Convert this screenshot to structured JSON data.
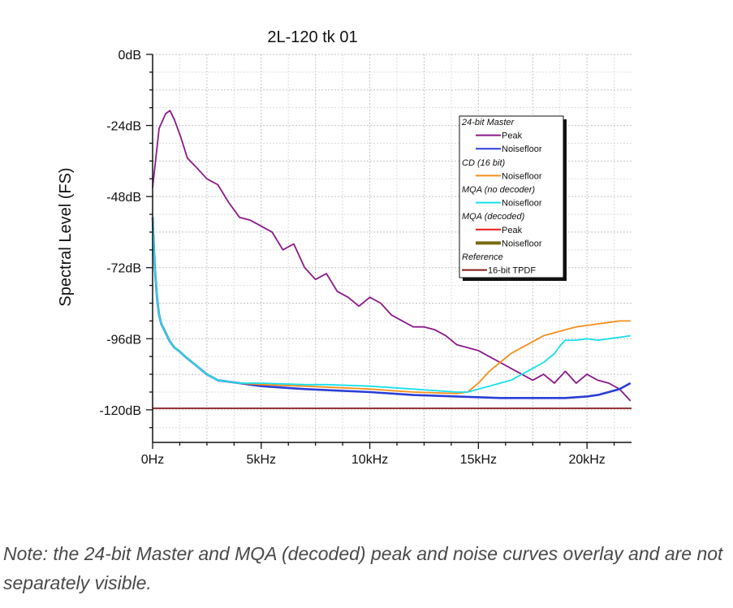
{
  "chart_data": {
    "type": "line",
    "title": "2L-120 tk 01",
    "xlabel": "",
    "ylabel": "Spectral Level (FS)",
    "xlim": [
      0,
      22050
    ],
    "ylim": [
      -131,
      0
    ],
    "x_ticks": [
      {
        "value": 0,
        "label": "0Hz"
      },
      {
        "value": 5000,
        "label": "5kHz"
      },
      {
        "value": 10000,
        "label": "10kHz"
      },
      {
        "value": 15000,
        "label": "15kHz"
      },
      {
        "value": 20000,
        "label": "20kHz"
      }
    ],
    "y_ticks": [
      {
        "value": 0,
        "label": "0dB"
      },
      {
        "value": -24,
        "label": "-24dB"
      },
      {
        "value": -48,
        "label": "-48dB"
      },
      {
        "value": -72,
        "label": "-72dB"
      },
      {
        "value": -96,
        "label": "-96dB"
      },
      {
        "value": -120,
        "label": "-120dB"
      }
    ],
    "grid": true,
    "legend_position": "right",
    "legend_groups": [
      {
        "title": "24-bit Master",
        "entries": [
          {
            "label": "Peak",
            "series": "master_peak"
          },
          {
            "label": "Noisefloor",
            "series": "master_noise"
          }
        ]
      },
      {
        "title": "CD (16 bit)",
        "entries": [
          {
            "label": "Noisefloor",
            "series": "cd_noise"
          }
        ]
      },
      {
        "title": "MQA (no decoder)",
        "entries": [
          {
            "label": "Noisefloor",
            "series": "mqa_nd_noise"
          }
        ]
      },
      {
        "title": "MQA (decoded)",
        "entries": [
          {
            "label": "Peak",
            "series": "mqa_dec_peak"
          },
          {
            "label": "Noisefloor",
            "series": "mqa_dec_noise"
          }
        ]
      },
      {
        "title": "Reference",
        "entries": [
          {
            "label": "16-bit TPDF",
            "series": "tpdf"
          }
        ]
      }
    ],
    "series": [
      {
        "id": "master_peak",
        "name": "24-bit Master Peak",
        "color": "#8b1a8b",
        "x": [
          0,
          300,
          600,
          800,
          1000,
          1300,
          1600,
          2000,
          2500,
          3000,
          3500,
          4000,
          4500,
          5000,
          5500,
          6000,
          6500,
          7000,
          7500,
          8000,
          8500,
          9000,
          9500,
          10000,
          10500,
          11000,
          11500,
          12000,
          12500,
          13000,
          13500,
          14000,
          14500,
          15000,
          15500,
          16000,
          16500,
          17000,
          17500,
          18000,
          18500,
          19000,
          19500,
          20000,
          20500,
          21000,
          21500,
          22000
        ],
        "y": [
          -45,
          -25,
          -20,
          -19,
          -22,
          -28,
          -35,
          -38,
          -42,
          -44,
          -50,
          -55,
          -56,
          -58,
          -60,
          -66,
          -64,
          -72,
          -76,
          -74,
          -80,
          -82,
          -85,
          -82,
          -84,
          -88,
          -90,
          -92,
          -92,
          -93,
          -95,
          -98,
          -99,
          -100,
          -102,
          -104,
          -106,
          -108,
          -110,
          -108,
          -111,
          -107,
          -111,
          -108,
          -110,
          -111,
          -113,
          -117
        ]
      },
      {
        "id": "master_noise",
        "name": "24-bit Master Noisefloor",
        "color": "#2a3dd6",
        "x": [
          0,
          100,
          200,
          300,
          400,
          600,
          800,
          1000,
          1200,
          1500,
          2000,
          2500,
          3000,
          4000,
          5000,
          7000,
          10000,
          12000,
          14000,
          16000,
          18000,
          19000,
          20000,
          20500,
          21000,
          21500,
          22000
        ],
        "y": [
          -55,
          -72,
          -82,
          -88,
          -91,
          -94,
          -97,
          -99,
          -100,
          -102,
          -105,
          -108,
          -110,
          -111,
          -112,
          -113,
          -114,
          -115,
          -115.5,
          -116,
          -116,
          -116,
          -115.5,
          -115,
          -114,
          -113,
          -111
        ]
      },
      {
        "id": "cd_noise",
        "name": "CD (16 bit) Noisefloor",
        "color": "#f5901e",
        "x": [
          0,
          100,
          200,
          300,
          400,
          600,
          800,
          1000,
          1200,
          1500,
          2000,
          2500,
          3000,
          4000,
          5000,
          7000,
          10000,
          12000,
          14000,
          14500,
          15000,
          15500,
          16000,
          16500,
          17000,
          17500,
          18000,
          18500,
          19000,
          19500,
          20000,
          20500,
          21000,
          21500,
          22000
        ],
        "y": [
          -55,
          -72,
          -82,
          -88,
          -91,
          -94,
          -97,
          -99,
          -100,
          -102,
          -105,
          -108,
          -110,
          -111,
          -111.5,
          -112,
          -113,
          -114,
          -114.5,
          -114,
          -111,
          -107,
          -104,
          -101,
          -99,
          -97,
          -95,
          -94,
          -93,
          -92,
          -91.5,
          -91,
          -90.5,
          -90,
          -90
        ]
      },
      {
        "id": "mqa_nd_noise",
        "name": "MQA (no decoder) Noisefloor",
        "color": "#16e0ee",
        "x": [
          0,
          100,
          200,
          300,
          400,
          600,
          800,
          1000,
          1200,
          1500,
          2000,
          2500,
          3000,
          4000,
          5000,
          7000,
          8000,
          10000,
          12000,
          13000,
          14000,
          14500,
          15000,
          15500,
          16000,
          16500,
          17000,
          17500,
          18000,
          18500,
          18800,
          19000,
          19500,
          20000,
          20500,
          21000,
          21500,
          22000
        ],
        "y": [
          -55,
          -72,
          -82,
          -88,
          -91,
          -94,
          -97,
          -99,
          -100,
          -102,
          -105,
          -108,
          -110,
          -111,
          -111,
          -111.5,
          -111.5,
          -112,
          -113,
          -113.5,
          -114,
          -114,
          -113,
          -112,
          -111,
          -110,
          -108,
          -106,
          -104,
          -101,
          -98,
          -96.5,
          -96.5,
          -96,
          -96.5,
          -96,
          -95.5,
          -95
        ]
      },
      {
        "id": "mqa_dec_peak",
        "name": "MQA (decoded) Peak",
        "color": "#e81818",
        "x": [],
        "y": []
      },
      {
        "id": "mqa_dec_noise",
        "name": "MQA (decoded) Noisefloor",
        "color": "#7a6a10",
        "x": [],
        "y": []
      },
      {
        "id": "tpdf",
        "name": "Reference 16-bit TPDF",
        "color": "#8b1a1a",
        "x": [
          0,
          22050
        ],
        "y": [
          -119.5,
          -119.5
        ]
      }
    ]
  },
  "caption": "Note: the 24-bit Master and MQA (decoded) peak and noise curves overlay and are not separately visible."
}
